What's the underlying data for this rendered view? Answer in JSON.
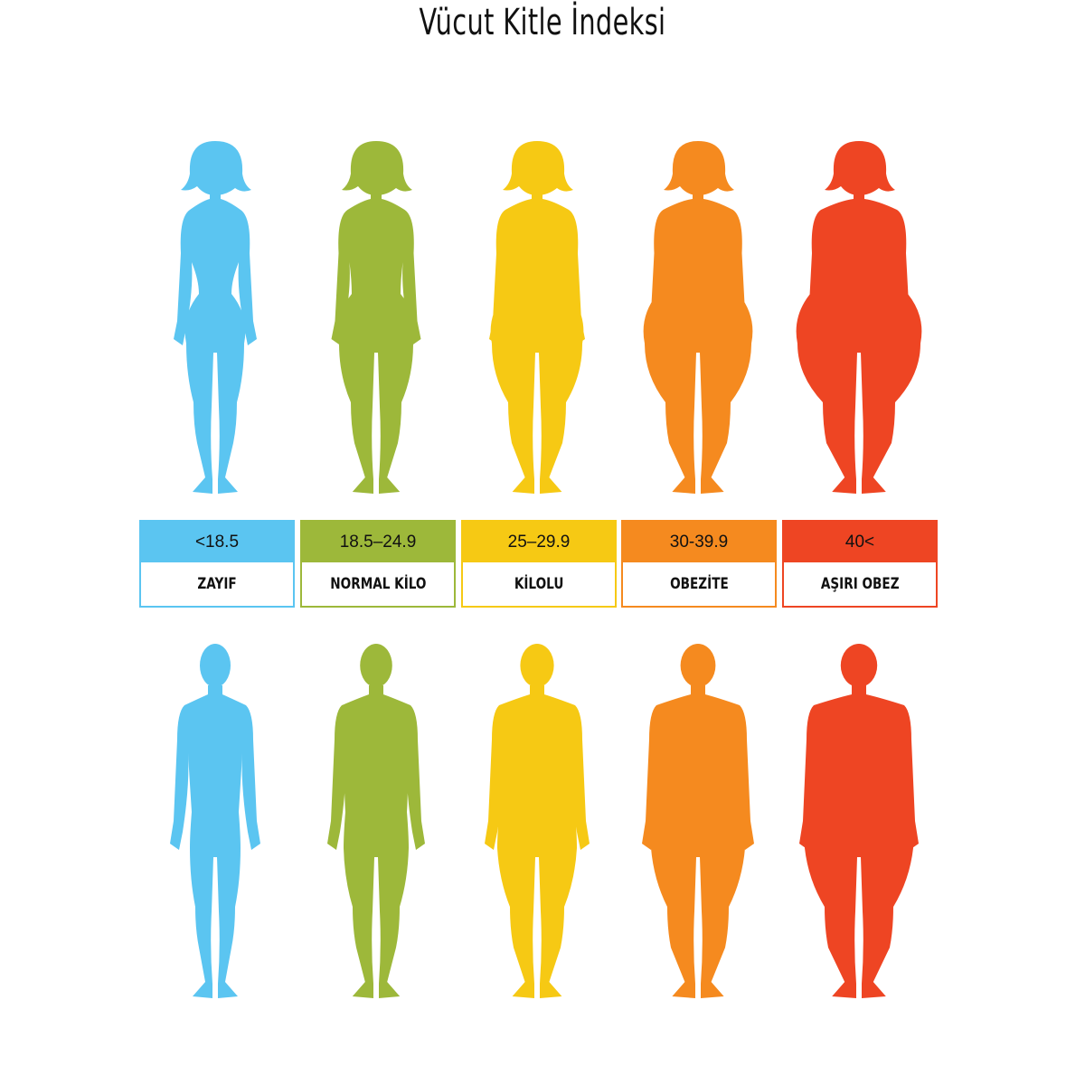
{
  "title": "Vücut Kitle İndeksi",
  "categories": [
    {
      "range": "<18.5",
      "label": "ZAYIF",
      "color": "#5bc5f1"
    },
    {
      "range": "18.5–24.9",
      "label": "NORMAL KİLO",
      "color": "#9db83a"
    },
    {
      "range": "25–29.9",
      "label": "KİLOLU",
      "color": "#f6c914"
    },
    {
      "range": "30-39.9",
      "label": "OBEZİTE",
      "color": "#f58a1f"
    },
    {
      "range": "40<",
      "label": "AŞIRI OBEZ",
      "color": "#ee4523"
    }
  ],
  "icons": {
    "female": "female-silhouette-icon",
    "male": "male-silhouette-icon"
  }
}
